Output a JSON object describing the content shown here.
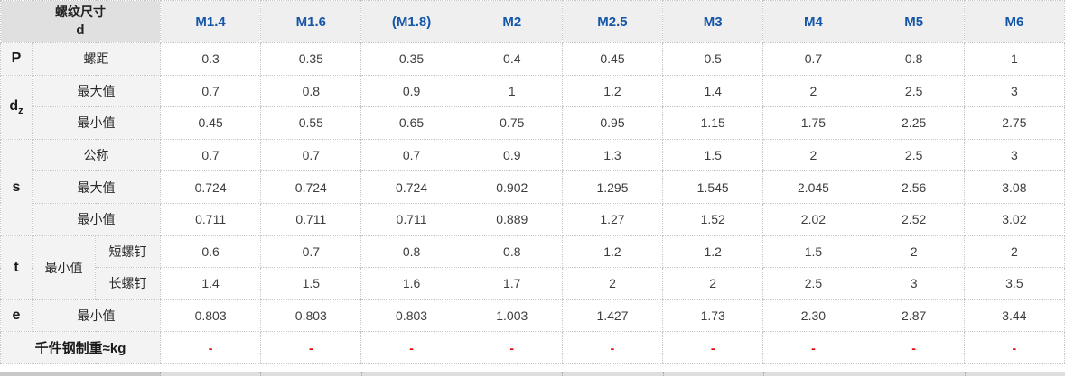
{
  "table": {
    "corner": {
      "line1": "螺纹尺寸",
      "line2": "d"
    },
    "sizes": [
      "M1.4",
      "M1.6",
      "(M1.8)",
      "M2",
      "M2.5",
      "M3",
      "M4",
      "M5",
      "M6"
    ],
    "groups": {
      "p": "P",
      "dz_main": "d",
      "dz_sub": "z",
      "s": "s",
      "t": "t",
      "e": "e"
    },
    "labels": {
      "pitch": "螺距",
      "max": "最大值",
      "min": "最小值",
      "nominal": "公称",
      "short_screw": "短螺钉",
      "long_screw": "长螺钉",
      "weight": "千件钢制重≈kg"
    },
    "rows": {
      "p": {
        "values": [
          "0.3",
          "0.35",
          "0.35",
          "0.4",
          "0.45",
          "0.5",
          "0.7",
          "0.8",
          "1"
        ]
      },
      "dz_max": {
        "values": [
          "0.7",
          "0.8",
          "0.9",
          "1",
          "1.2",
          "1.4",
          "2",
          "2.5",
          "3"
        ]
      },
      "dz_min": {
        "values": [
          "0.45",
          "0.55",
          "0.65",
          "0.75",
          "0.95",
          "1.15",
          "1.75",
          "2.25",
          "2.75"
        ]
      },
      "s_nom": {
        "values": [
          "0.7",
          "0.7",
          "0.7",
          "0.9",
          "1.3",
          "1.5",
          "2",
          "2.5",
          "3"
        ]
      },
      "s_max": {
        "values": [
          "0.724",
          "0.724",
          "0.724",
          "0.902",
          "1.295",
          "1.545",
          "2.045",
          "2.56",
          "3.08"
        ]
      },
      "s_min": {
        "values": [
          "0.711",
          "0.711",
          "0.711",
          "0.889",
          "1.27",
          "1.52",
          "2.02",
          "2.52",
          "3.02"
        ]
      },
      "t_short": {
        "values": [
          "0.6",
          "0.7",
          "0.8",
          "0.8",
          "1.2",
          "1.2",
          "1.5",
          "2",
          "2"
        ]
      },
      "t_long": {
        "values": [
          "1.4",
          "1.5",
          "1.6",
          "1.7",
          "2",
          "2",
          "2.5",
          "3",
          "3.5"
        ]
      },
      "e_min": {
        "values": [
          "0.803",
          "0.803",
          "0.803",
          "1.003",
          "1.427",
          "1.73",
          "2.30",
          "2.87",
          "3.44"
        ]
      },
      "weight": {
        "values": [
          "-",
          "-",
          "-",
          "-",
          "-",
          "-",
          "-",
          "-",
          "-"
        ]
      }
    }
  },
  "colors": {
    "header_blue": "#1456a8",
    "dash_red": "#e00000",
    "border_gray": "#c6c6c6"
  }
}
